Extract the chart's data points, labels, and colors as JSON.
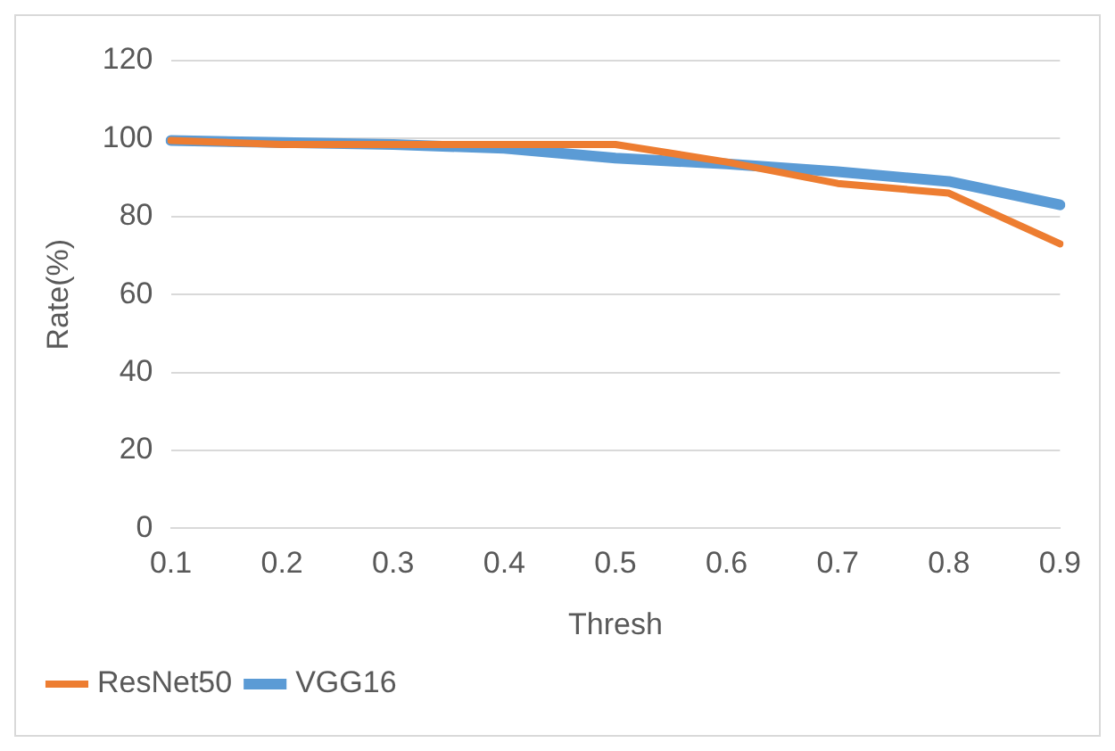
{
  "chart_data": {
    "type": "line",
    "xlabel": "Thresh",
    "ylabel": "Rate(%)",
    "categories": [
      "0.1",
      "0.2",
      "0.3",
      "0.4",
      "0.5",
      "0.6",
      "0.7",
      "0.8",
      "0.9"
    ],
    "series": [
      {
        "name": "VGG16",
        "color": "#5b9bd5",
        "values": [
          99.5,
          99,
          98.5,
          97.5,
          95,
          93.5,
          91.5,
          89,
          83
        ]
      },
      {
        "name": "ResNet50",
        "color": "#ed7d31",
        "values": [
          99.5,
          98.5,
          98.5,
          98.5,
          98.5,
          94,
          88.5,
          86,
          73
        ]
      }
    ],
    "ylim": [
      0,
      120
    ],
    "yticks": [
      0,
      20,
      40,
      60,
      80,
      100,
      120
    ],
    "grid": "y",
    "legend": "bottom left",
    "marker": "none"
  }
}
